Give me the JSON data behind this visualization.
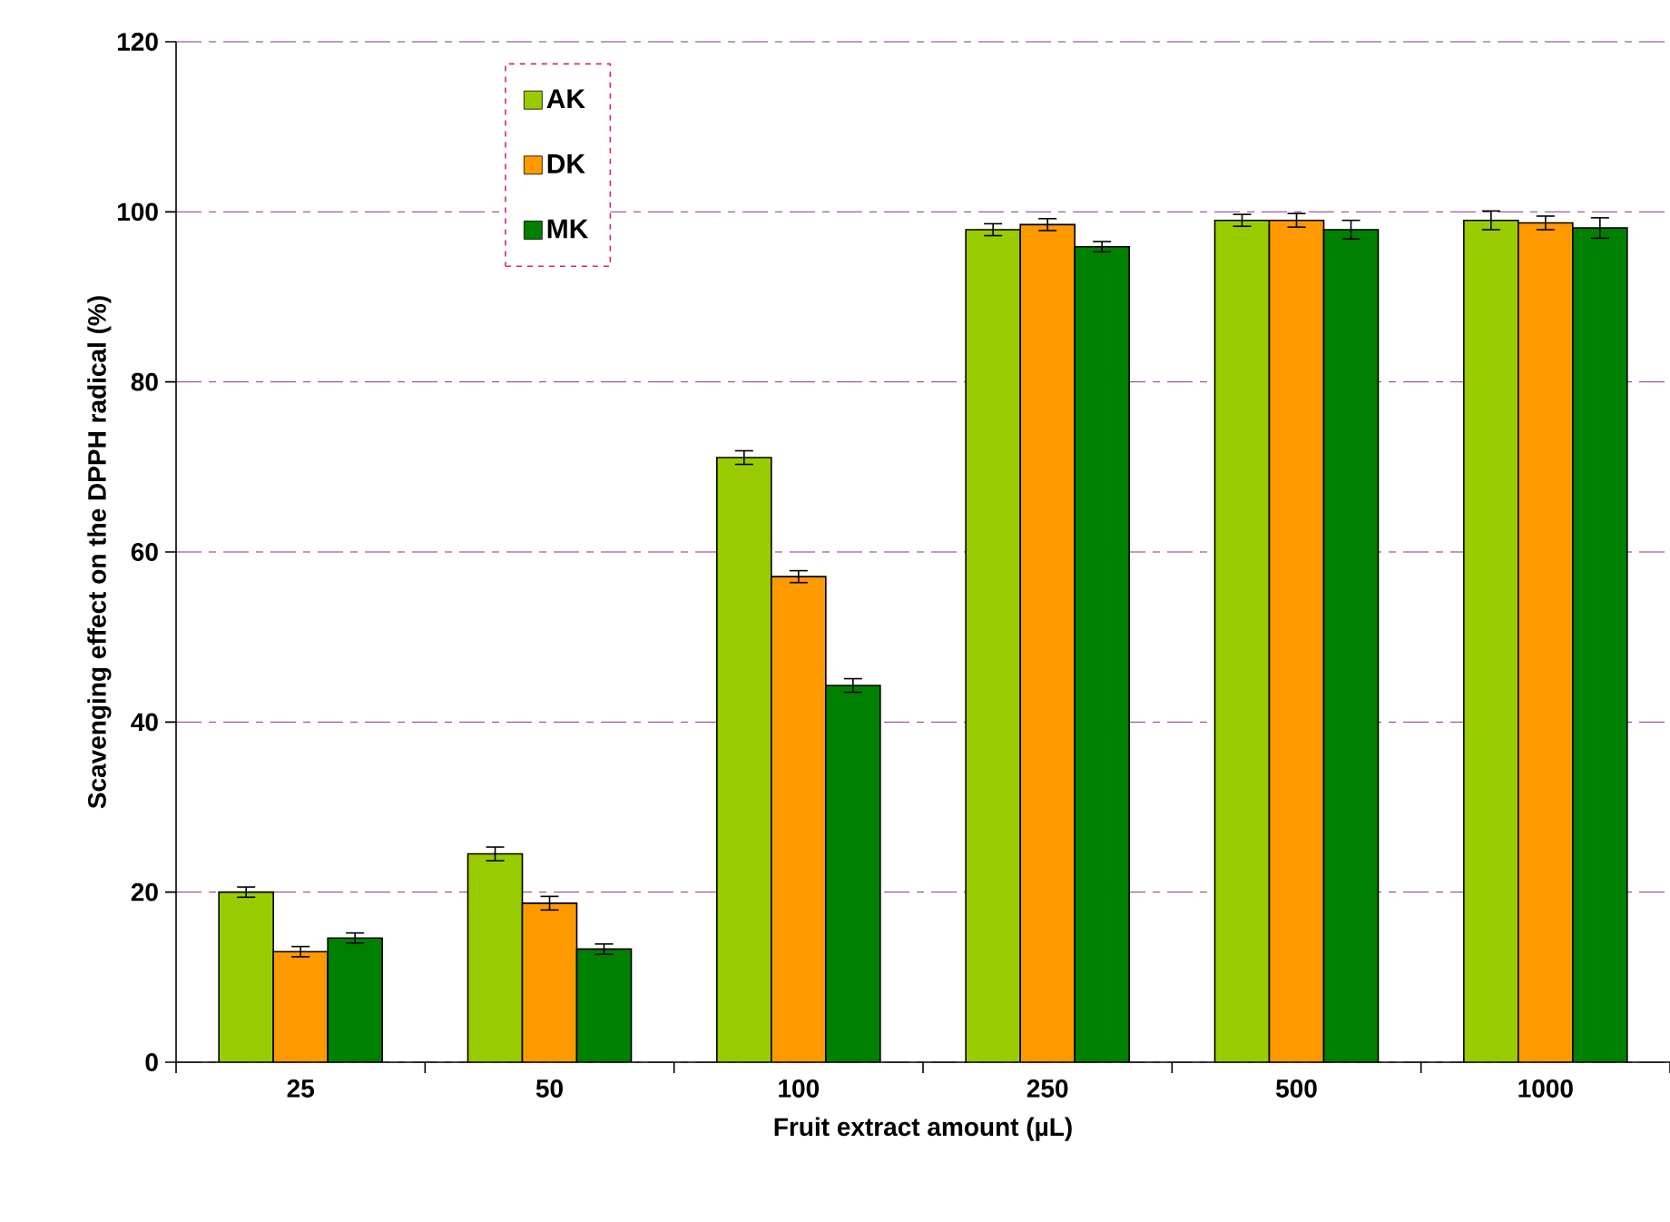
{
  "chart_data": {
    "type": "bar",
    "xlabel": "Fruit extract amount (µL)",
    "ylabel": "Scavenging effect on the DPPH radical (%)",
    "categories": [
      "25",
      "50",
      "100",
      "250",
      "500",
      "1000"
    ],
    "series": [
      {
        "name": "AK",
        "color": "#99cc00",
        "values": [
          20,
          24.5,
          71.1,
          97.9,
          99,
          99
        ],
        "errors": [
          0.6,
          0.8,
          0.8,
          0.7,
          0.7,
          1.1
        ]
      },
      {
        "name": "DK",
        "color": "#ff9900",
        "values": [
          13,
          18.7,
          57.1,
          98.5,
          99,
          98.7
        ],
        "errors": [
          0.6,
          0.8,
          0.7,
          0.7,
          0.8,
          0.8
        ]
      },
      {
        "name": "MK",
        "color": "#008000",
        "values": [
          14.6,
          13.3,
          44.3,
          95.9,
          97.9,
          98.1
        ],
        "errors": [
          0.6,
          0.6,
          0.8,
          0.6,
          1.1,
          1.2
        ]
      }
    ],
    "ylim": [
      0,
      120
    ],
    "yticks": [
      0,
      20,
      40,
      60,
      80,
      100,
      120
    ],
    "grid": "y",
    "legend": "top left"
  }
}
